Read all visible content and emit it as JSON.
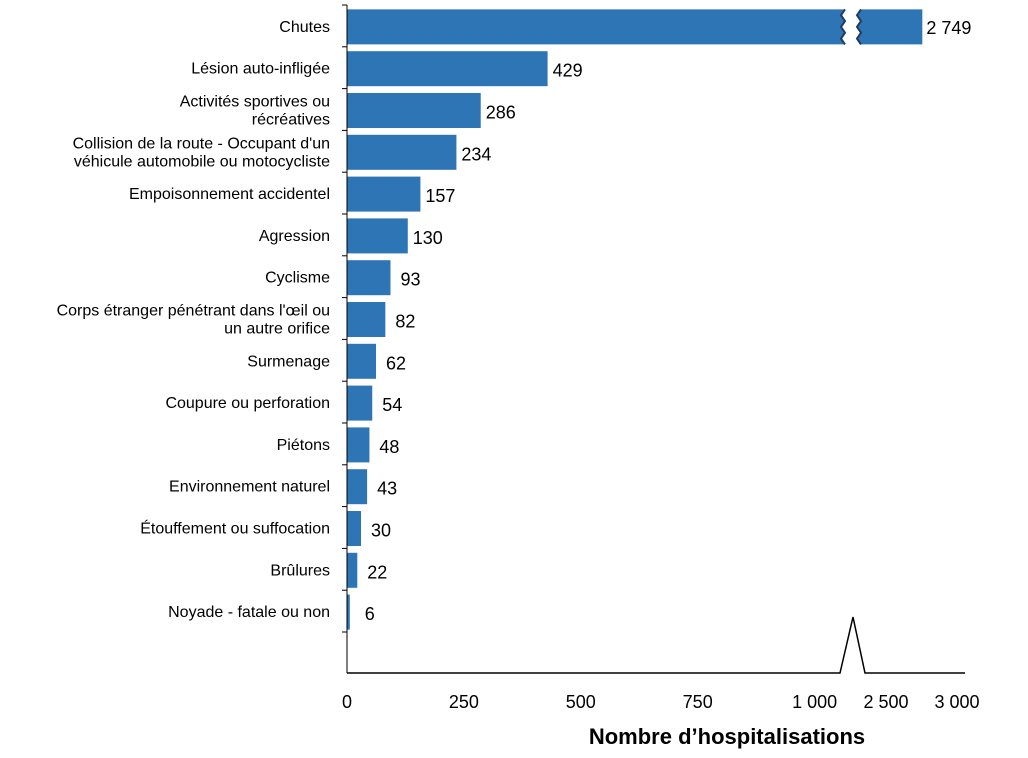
{
  "chart_data": {
    "type": "bar",
    "orientation": "horizontal",
    "axis_break": true,
    "categories": [
      [
        "Chutes"
      ],
      [
        "Lésion auto-infligée"
      ],
      [
        "Activités sportives ou",
        "récréatives"
      ],
      [
        "Collision de la route - Occupant d'un",
        "véhicule automobile ou motocycliste"
      ],
      [
        "Empoisonnement accidentel"
      ],
      [
        "Agression"
      ],
      [
        "Cyclisme"
      ],
      [
        "Corps étranger pénétrant dans l'œil ou",
        "un autre orifice"
      ],
      [
        "Surmenage"
      ],
      [
        "Coupure ou perforation"
      ],
      [
        "Piétons"
      ],
      [
        "Environnement naturel"
      ],
      [
        "Étouffement ou suffocation"
      ],
      [
        "Brûlures"
      ],
      [
        "Noyade - fatale ou non"
      ]
    ],
    "values": [
      2749,
      429,
      286,
      234,
      157,
      130,
      93,
      82,
      62,
      54,
      48,
      43,
      30,
      22,
      6
    ],
    "value_labels": [
      "2 749",
      "429",
      "286",
      "234",
      "157",
      "130",
      "93",
      "82",
      "62",
      "54",
      "48",
      "43",
      "30",
      "22",
      "6"
    ],
    "x_ticks_lower": [
      0,
      250,
      500,
      750,
      1000
    ],
    "x_ticks_lower_labels": [
      "0",
      "250",
      "500",
      "750",
      "1 000"
    ],
    "x_ticks_upper": [
      2500,
      3000
    ],
    "x_ticks_upper_labels": [
      "2 500",
      "3 000"
    ],
    "xlim_lower": [
      0,
      1100
    ],
    "xlim_upper": [
      2400,
      3000
    ],
    "xlabel": "Nombre d’hospitalisations",
    "bar_color": "#2E75B6",
    "break_color": "#1F3B60",
    "grid": false
  }
}
